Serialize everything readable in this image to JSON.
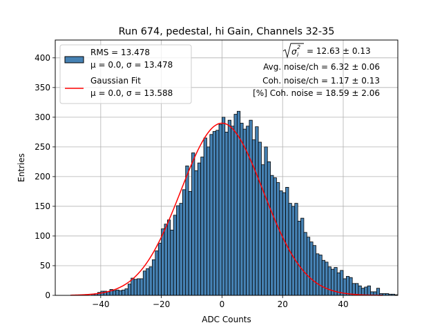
{
  "chart_data": {
    "type": "bar",
    "title": "Run 674, pedestal, hi Gain, Channels 32-35",
    "xlabel": "ADC Counts",
    "ylabel": "Entries",
    "xlim": [
      -55,
      58
    ],
    "ylim": [
      0,
      430
    ],
    "xticks": [
      -40,
      -20,
      0,
      20,
      40
    ],
    "xtick_labels": [
      "−40",
      "−20",
      "0",
      "20",
      "40"
    ],
    "yticks": [
      0,
      50,
      100,
      150,
      200,
      250,
      300,
      350,
      400
    ],
    "ytick_labels": [
      "0",
      "50",
      "100",
      "150",
      "200",
      "250",
      "300",
      "350",
      "400"
    ],
    "grid": true,
    "legend_position": "top-left",
    "legend": [
      {
        "line1": "RMS = 13.478",
        "line2": "μ = 0.0, σ = 13.478",
        "kind": "patch"
      },
      {
        "line1": "Gaussian Fit",
        "line2": "μ = 0.0, σ = 13.588",
        "kind": "line"
      }
    ],
    "annotations": {
      "sigma_value": "= 12.63 ± 0.13",
      "avg_noise": "Avg. noise/ch = 6.32 ± 0.06",
      "coh_noise": "Coh. noise/ch = 1.17 ± 0.13",
      "pct_coh_noise": "[%] Coh. noise = 18.59 ± 2.06"
    },
    "histogram": {
      "bin_width": 1,
      "bin_start": -43,
      "counts": [
        2,
        3,
        5,
        7,
        7,
        6,
        10,
        8,
        9,
        8,
        9,
        11,
        19,
        29,
        27,
        28,
        28,
        41,
        45,
        48,
        60,
        75,
        88,
        112,
        120,
        127,
        110,
        135,
        151,
        155,
        178,
        218,
        175,
        240,
        210,
        223,
        233,
        265,
        250,
        271,
        276,
        278,
        288,
        300,
        275,
        295,
        285,
        305,
        310,
        290,
        280,
        285,
        295,
        262,
        284,
        258,
        220,
        250,
        225,
        202,
        198,
        190,
        176,
        173,
        182,
        155,
        150,
        155,
        125,
        130,
        106,
        98,
        90,
        84,
        70,
        68,
        59,
        56,
        48,
        44,
        47,
        38,
        42,
        28,
        32,
        30,
        20,
        20,
        16,
        12,
        14,
        16,
        6,
        6,
        12,
        3,
        3,
        3,
        2,
        2,
        1
      ]
    },
    "fit": {
      "mu": 0.0,
      "sigma": 13.588,
      "amplitude": 290,
      "x_range": [
        -50,
        53
      ]
    },
    "colors": {
      "bar_fill": "#4682b4",
      "bar_edge": "#000000",
      "fit_line": "#ff0000",
      "grid": "#b0b0b0"
    }
  }
}
